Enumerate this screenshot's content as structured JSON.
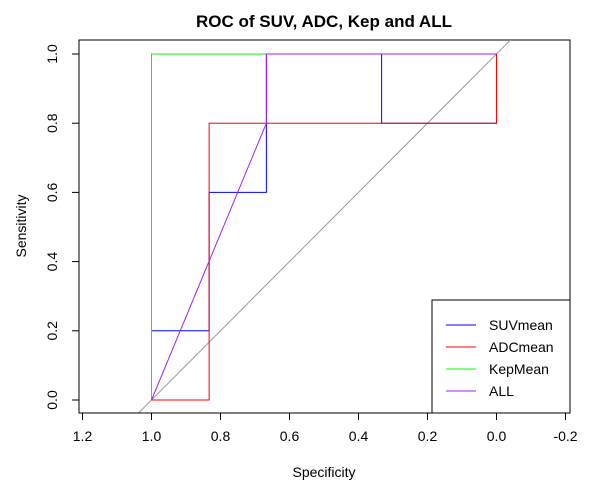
{
  "chart_data": {
    "type": "line",
    "title": "ROC of SUV, ADC, Kep and ALL",
    "xlabel": "Specificity",
    "ylabel": "Sensitivity",
    "xlim": [
      1.2,
      -0.2
    ],
    "ylim": [
      0.0,
      1.0
    ],
    "x_reversed": true,
    "x_ticks": [
      1.2,
      1.0,
      0.8,
      0.6,
      0.4,
      0.2,
      0.0,
      -0.2
    ],
    "x_tick_labels": [
      "1.2",
      "1.0",
      "0.8",
      "0.6",
      "0.4",
      "0.2",
      "0.0",
      "-0.2"
    ],
    "y_ticks": [
      0.0,
      0.2,
      0.4,
      0.6,
      0.8,
      1.0
    ],
    "y_tick_labels": [
      "0.0",
      "0.2",
      "0.4",
      "0.6",
      "0.8",
      "1.0"
    ],
    "grid": false,
    "legend_position": "bottom-right",
    "reference_line": {
      "type": "diagonal",
      "color": "#999999"
    },
    "series": [
      {
        "name": "SUVmean",
        "color": "#0000ff",
        "x": [
          1.0,
          1.0,
          0.833,
          0.833,
          0.667,
          0.667,
          0.333,
          0.333,
          0.0
        ],
        "y": [
          0.0,
          0.2,
          0.2,
          0.6,
          0.6,
          1.0,
          1.0,
          0.8,
          0.8
        ]
      },
      {
        "name": "ADCmean",
        "color": "#ff0000",
        "x": [
          1.0,
          0.833,
          0.833,
          0.0,
          0.0
        ],
        "y": [
          0.0,
          0.0,
          0.8,
          0.8,
          1.0
        ]
      },
      {
        "name": "KepMean",
        "color": "#00ff00",
        "x": [
          1.0,
          1.0,
          0.0
        ],
        "y": [
          0.0,
          1.0,
          1.0
        ]
      },
      {
        "name": "ALL",
        "color": "#a020f0",
        "x": [
          1.0,
          0.667,
          0.667,
          0.0
        ],
        "y": [
          0.0,
          0.8,
          1.0,
          1.0
        ]
      }
    ]
  }
}
